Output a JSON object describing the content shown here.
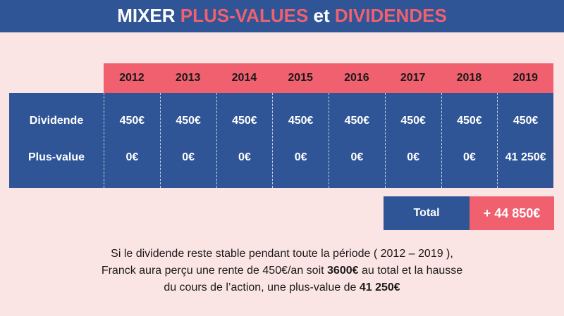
{
  "title": {
    "part1": "MIXER ",
    "part2": "PLUS-VALUES",
    "part3": " et ",
    "part4": "DIVIDENDES"
  },
  "colors": {
    "navy": "#2f5597",
    "coral": "#f0606f",
    "background": "#fbe4e4"
  },
  "table": {
    "years": [
      "2012",
      "2013",
      "2014",
      "2015",
      "2016",
      "2017",
      "2018",
      "2019"
    ],
    "rows": [
      {
        "label": "Dividende",
        "values": [
          "450€",
          "450€",
          "450€",
          "450€",
          "450€",
          "450€",
          "450€",
          "450€"
        ]
      },
      {
        "label": "Plus-value",
        "values": [
          "0€",
          "0€",
          "0€",
          "0€",
          "0€",
          "0€",
          "0€",
          "41 250€"
        ]
      }
    ]
  },
  "total": {
    "label": "Total",
    "value": "+ 44 850€"
  },
  "note": {
    "line1": "Si le dividende reste stable pendant toute la période ( 2012 – 2019 ),",
    "line2_a": "Franck aura perçu une rente de 450€/an soit ",
    "line2_b": "3600€",
    "line2_c": " au total et la hausse",
    "line3_a": "du cours de l’action, une plus-value de ",
    "line3_b": "41 250€"
  }
}
